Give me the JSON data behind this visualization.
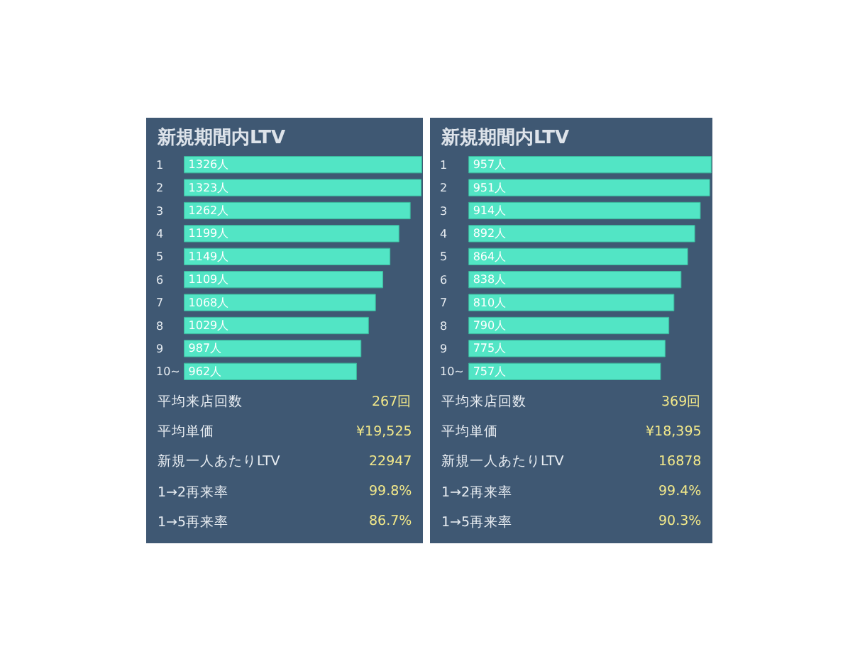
{
  "chart_data": [
    {
      "type": "bar",
      "title": "新規期間内LTV",
      "orientation": "horizontal",
      "categories": [
        "1",
        "2",
        "3",
        "4",
        "5",
        "6",
        "7",
        "8",
        "9",
        "10~"
      ],
      "values": [
        1326,
        1323,
        1262,
        1199,
        1149,
        1109,
        1068,
        1029,
        987,
        962
      ],
      "color": "#52e5c5",
      "value_labels": [
        "1326人",
        "1323人",
        "1262人",
        "1199人",
        "1149人",
        "1109人",
        "1068人",
        "1029人",
        "987人",
        "962人"
      ]
    },
    {
      "type": "other",
      "annotations": [
        "平均来店回数",
        "267回",
        "平均単価",
        "¥19,525",
        "新規一人あたりLTV",
        "22947",
        "1→2再来率",
        "99.8%",
        "1→5再来率",
        "86.7%"
      ]
    },
    {
      "type": "bar",
      "title": "新規期間内LTV",
      "orientation": "horizontal",
      "categories": [
        "1",
        "2",
        "3",
        "4",
        "5",
        "6",
        "7",
        "8",
        "9",
        "10~"
      ],
      "values": [
        957,
        951,
        914,
        892,
        864,
        838,
        810,
        790,
        775,
        757
      ],
      "color": "#52e5c5",
      "value_labels": [
        "957人",
        "951人",
        "914人",
        "892人",
        "864人",
        "838人",
        "810人",
        "790人",
        "775人",
        "757人"
      ]
    },
    {
      "type": "other",
      "annotations": [
        "平均来店回数",
        "369回",
        "平均単価",
        "¥18,395",
        "新規一人あたりLTV",
        "16878",
        "1→2再来率",
        "99.4%",
        "1→5再来率",
        "90.3%"
      ]
    }
  ]
}
